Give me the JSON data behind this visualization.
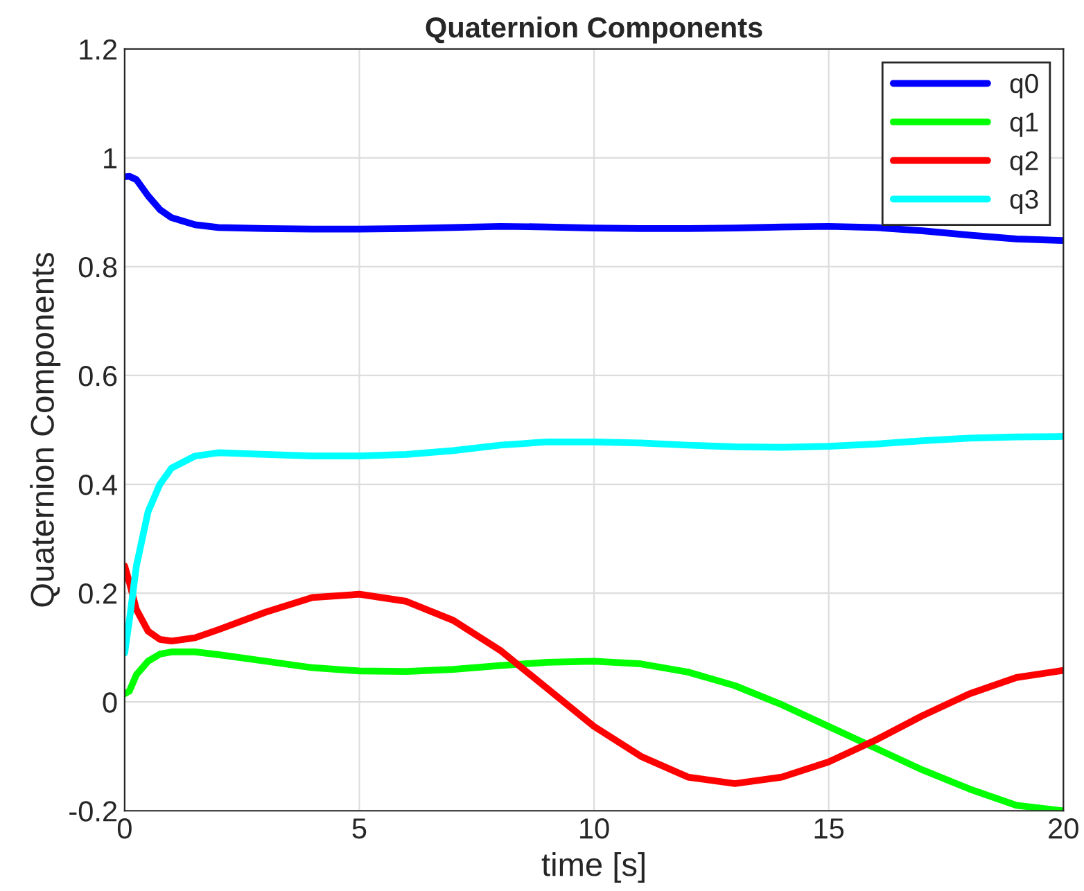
{
  "chart_data": {
    "type": "line",
    "title": "Quaternion Components",
    "xlabel": "time [s]",
    "ylabel": "Quaternion Components",
    "x": [
      0,
      0.1,
      0.25,
      0.5,
      0.75,
      1,
      1.5,
      2,
      3,
      4,
      5,
      6,
      7,
      8,
      9,
      10,
      11,
      12,
      13,
      14,
      15,
      16,
      17,
      18,
      19,
      20
    ],
    "series": [
      {
        "name": "q0",
        "color": "#0000ff",
        "values": [
          0.965,
          0.966,
          0.96,
          0.93,
          0.905,
          0.89,
          0.877,
          0.872,
          0.87,
          0.869,
          0.869,
          0.87,
          0.872,
          0.874,
          0.873,
          0.871,
          0.87,
          0.87,
          0.871,
          0.873,
          0.874,
          0.872,
          0.866,
          0.858,
          0.851,
          0.848
        ]
      },
      {
        "name": "q1",
        "color": "#00ff00",
        "values": [
          0.015,
          0.02,
          0.05,
          0.075,
          0.088,
          0.092,
          0.092,
          0.087,
          0.075,
          0.063,
          0.057,
          0.056,
          0.06,
          0.067,
          0.073,
          0.075,
          0.07,
          0.055,
          0.03,
          -0.005,
          -0.045,
          -0.085,
          -0.125,
          -0.16,
          -0.19,
          -0.2
        ]
      },
      {
        "name": "q2",
        "color": "#ff0000",
        "values": [
          0.25,
          0.22,
          0.17,
          0.13,
          0.115,
          0.112,
          0.118,
          0.133,
          0.165,
          0.192,
          0.198,
          0.185,
          0.15,
          0.095,
          0.025,
          -0.045,
          -0.1,
          -0.138,
          -0.15,
          -0.138,
          -0.11,
          -0.07,
          -0.025,
          0.015,
          0.045,
          0.058
        ]
      },
      {
        "name": "q3",
        "color": "#00ffff",
        "values": [
          0.09,
          0.15,
          0.25,
          0.35,
          0.4,
          0.43,
          0.452,
          0.458,
          0.455,
          0.452,
          0.452,
          0.455,
          0.462,
          0.472,
          0.478,
          0.478,
          0.476,
          0.472,
          0.469,
          0.468,
          0.47,
          0.474,
          0.48,
          0.485,
          0.487,
          0.488
        ]
      }
    ],
    "xlim": [
      0,
      20
    ],
    "xticks": [
      0,
      5,
      10,
      15,
      20
    ],
    "ylim": [
      -0.2,
      1.2
    ],
    "yticks": [
      {
        "value": -0.2,
        "label": "-0.2"
      },
      0,
      0.2,
      0.4,
      0.6,
      0.8,
      1,
      1.2
    ],
    "grid": true,
    "legend": "top right",
    "line_style": "solid",
    "marker": "none"
  }
}
